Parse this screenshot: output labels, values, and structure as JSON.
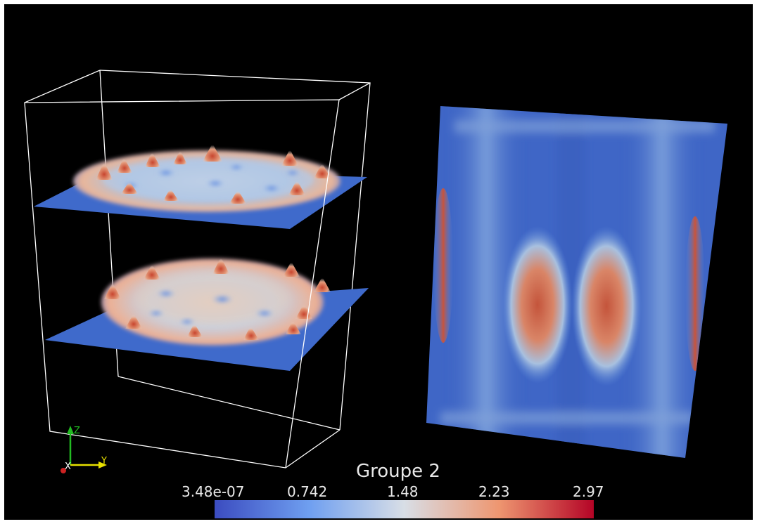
{
  "colorbar": {
    "title": "Groupe 2",
    "ticks": [
      "3.48e-07",
      "0.742",
      "1.48",
      "2.23",
      "2.97"
    ],
    "colormap": [
      "#3b4cc0",
      "#6f9ff0",
      "#d8dee6",
      "#ee9670",
      "#b40426"
    ]
  },
  "axes_triad": {
    "x_label": "X",
    "y_label": "Y",
    "z_label": "Z",
    "x_color": "#cc2222",
    "y_color": "#e8e000",
    "z_color": "#22bb22"
  },
  "colors": {
    "background": "#000000",
    "outline": "#ffffff"
  }
}
